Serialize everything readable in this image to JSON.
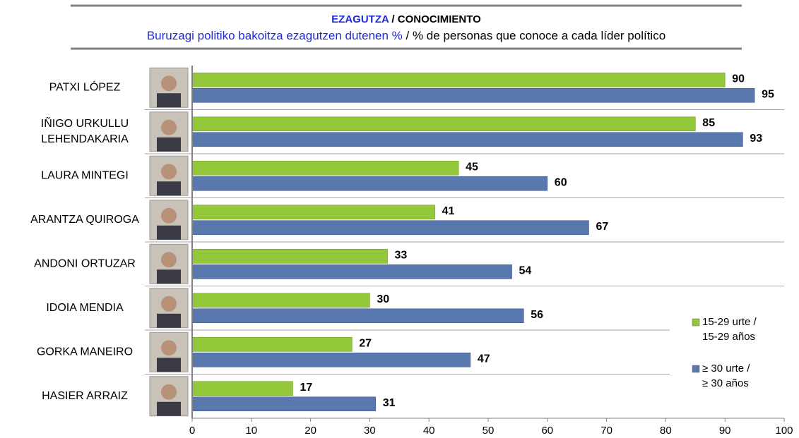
{
  "chart_data": {
    "type": "hbar",
    "title": [
      "EZAGUTZA",
      " / CONOCIMIENTO"
    ],
    "subtitle": [
      "Buruzagi politiko bakoitza ezagutzen dutenen %",
      " / % de personas que conoce a cada líder político"
    ],
    "categories": [
      [
        "PATXI LÓPEZ"
      ],
      [
        "IÑIGO URKULLU",
        "LEHENDAKARIA"
      ],
      [
        "LAURA MINTEGI"
      ],
      [
        "ARANTZA QUIROGA"
      ],
      [
        "ANDONI ORTUZAR"
      ],
      [
        "IDOIA MENDIA"
      ],
      [
        "GORKA MANEIRO"
      ],
      [
        "HASIER ARRAIZ"
      ]
    ],
    "series": [
      {
        "name": [
          "15-29 urte /",
          "15-29 años"
        ],
        "color": "#92c83a",
        "values": [
          90,
          85,
          45,
          41,
          33,
          30,
          27,
          17
        ]
      },
      {
        "name": [
          "≥ 30 urte /",
          "≥ 30 años"
        ],
        "color": "#5878ae",
        "values": [
          95,
          93,
          60,
          67,
          54,
          56,
          47,
          31
        ]
      }
    ],
    "xlim": [
      0,
      100
    ],
    "xticks": [
      0,
      10,
      20,
      30,
      40,
      50,
      60,
      70,
      80,
      90,
      100
    ]
  }
}
